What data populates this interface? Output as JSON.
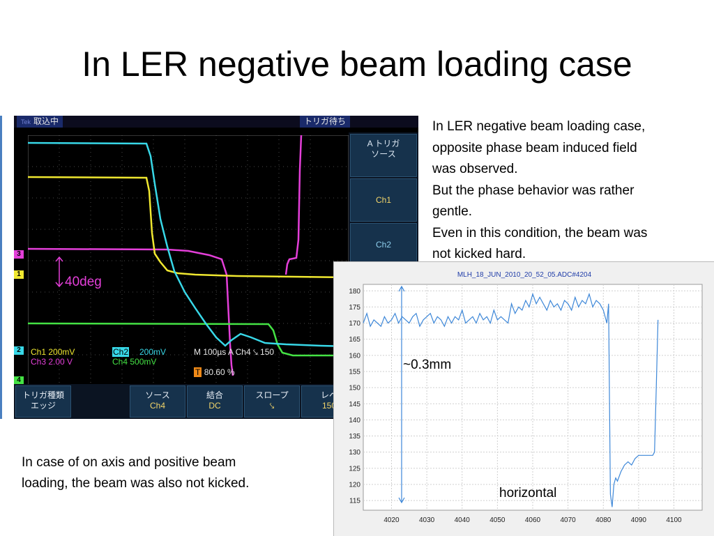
{
  "slide": {
    "title": "In LER negative beam loading case",
    "description_lines": [
      "In LER negative beam loading case,",
      "opposite phase beam induced field",
      "was observed.",
      "But the phase behavior was rather",
      "gentle.",
      "Even in this condition, the beam was",
      "not kicked hard."
    ],
    "bottom_lines": [
      "In case of on axis and positive beam",
      "loading, the beam was also not kicked."
    ]
  },
  "scope": {
    "status": "取込中",
    "trigger_status": "トリガ待ち",
    "run_badge": "Tek",
    "annotation_40deg": "40deg",
    "side_menu": {
      "header_line1": "A トリガ",
      "header_line2": "ソース",
      "ch1": "Ch1",
      "ch2": "Ch2"
    },
    "readouts": {
      "ch1": "Ch1  200mV",
      "ch3": "Ch3  2.00 V",
      "ch2_label": "Ch2",
      "ch2_value": "200mV",
      "ch4": "Ch4  500mV",
      "timebase": "M 100µs  A  Ch4  ⤥  150",
      "trigger_pos": "80.60 %"
    },
    "bottom_menu": {
      "trig_type_line1": "トリガ種類",
      "trig_type_line2": "エッジ",
      "source_line1": "ソース",
      "source_line2": "Ch4",
      "coupling_line1": "結合",
      "coupling_line2": "DC",
      "slope_line1": "スロープ",
      "slope_line2": "⤥",
      "level_line1": "レベ",
      "level_line2": "150"
    },
    "markers": [
      "3",
      "1",
      "2",
      "4"
    ],
    "colors": {
      "ch1": "#f0e830",
      "ch2": "#38d8e8",
      "ch3": "#e43fd9",
      "ch4": "#44e244"
    }
  },
  "graph": {
    "title": "MLH_18_JUN_2010_20_52_05.ADC#4204",
    "annotation_mm": "~0.3mm",
    "annotation_horizontal": "horizontal",
    "line_color": "#3d87d8",
    "chart_data": {
      "type": "line",
      "xlim": [
        4012,
        4108
      ],
      "ylim": [
        112,
        182
      ],
      "x_ticks": [
        4020,
        4030,
        4040,
        4050,
        4060,
        4070,
        4080,
        4090,
        4100
      ],
      "y_ticks": [
        115,
        120,
        125,
        130,
        135,
        140,
        145,
        150,
        155,
        160,
        165,
        170,
        175,
        180
      ],
      "grid": true,
      "series": [
        {
          "x": [
            4012,
            4013,
            4014,
            4015,
            4016,
            4017,
            4018,
            4019,
            4020,
            4021,
            4022,
            4023,
            4024,
            4025,
            4026,
            4027,
            4028,
            4029,
            4030,
            4031,
            4032,
            4033,
            4034,
            4035,
            4036,
            4037,
            4038,
            4039,
            4040,
            4041,
            4042,
            4043,
            4044,
            4045,
            4046,
            4047,
            4048,
            4049,
            4050,
            4051,
            4052,
            4053,
            4054,
            4055,
            4056,
            4057,
            4058,
            4059,
            4060,
            4061,
            4062,
            4063,
            4064,
            4065,
            4066,
            4067,
            4068,
            4069,
            4070,
            4071,
            4072,
            4073,
            4074,
            4075,
            4076,
            4077,
            4078,
            4079,
            4080,
            4081,
            4081.5,
            4082,
            4082.5,
            4083,
            4083.5,
            4084,
            4085,
            4086,
            4087,
            4088,
            4089,
            4090,
            4091,
            4092,
            4093,
            4094,
            4094.5,
            4095,
            4095.5
          ],
          "y": [
            170,
            173,
            169,
            171,
            170,
            169,
            172,
            170,
            171,
            173,
            170,
            172,
            171,
            170,
            172,
            173,
            169,
            171,
            172,
            173,
            170,
            172,
            171,
            169,
            172,
            170,
            172,
            171,
            174,
            170,
            171,
            172,
            170,
            173,
            171,
            172,
            170,
            174,
            171,
            172,
            171,
            170,
            176,
            173,
            175,
            174,
            177,
            175,
            179,
            176,
            178,
            176,
            174,
            177,
            175,
            176,
            174,
            177,
            176,
            174,
            178,
            175,
            177,
            176,
            179,
            175,
            177,
            176,
            174,
            170,
            176,
            117,
            113,
            120,
            122,
            121,
            124,
            126,
            127,
            126,
            128,
            129,
            129,
            129,
            129,
            129,
            130,
            150,
            171
          ]
        }
      ]
    }
  }
}
